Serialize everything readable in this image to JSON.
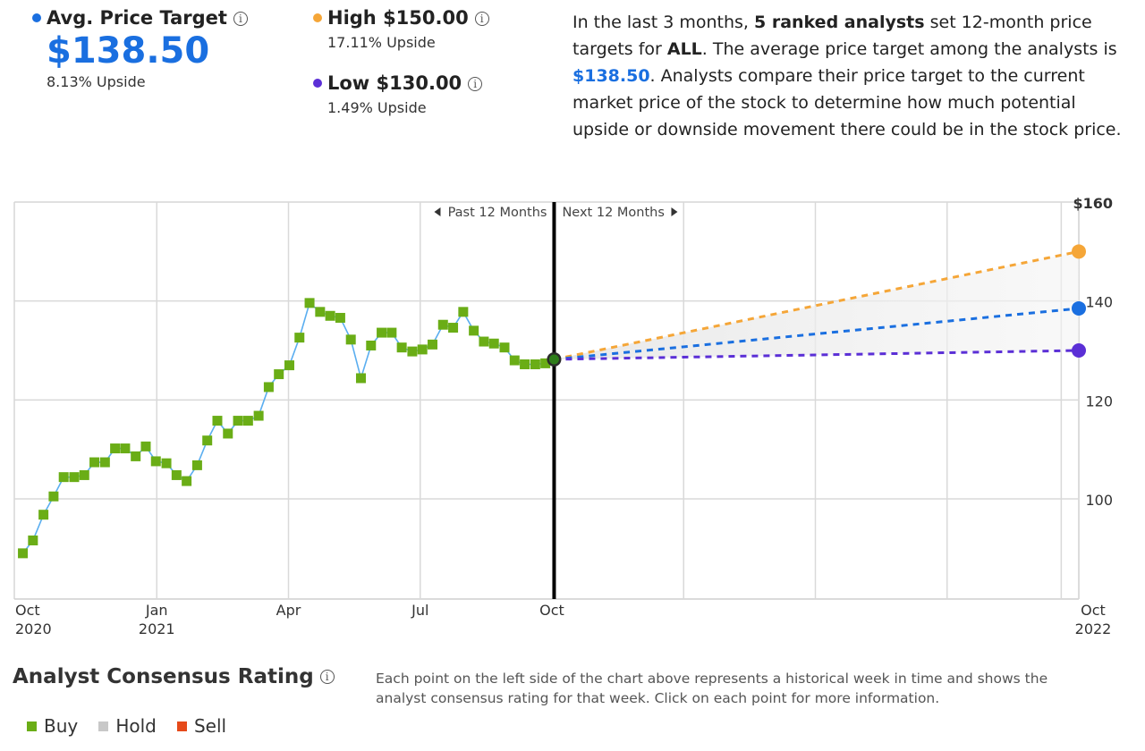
{
  "summary": {
    "avg": {
      "label": "Avg. Price Target",
      "value": "$138.50",
      "upside": "8.13% Upside",
      "color": "#1a6fe0"
    },
    "high": {
      "label": "High $150.00",
      "upside": "17.11% Upside",
      "color": "#f5a638"
    },
    "low": {
      "label": "Low $130.00",
      "upside": "1.49% Upside",
      "color": "#5b2fd6"
    },
    "info_icon": "info-icon"
  },
  "description": {
    "p1": "In the last 3 months, ",
    "b1": "5 ranked analysts",
    "p2": " set 12-month price targets for ",
    "b2": "ALL",
    "p3": ". The average price target among the analysts is ",
    "b3": "$138.50",
    "p4": ". Analysts compare their price target to the current market price of the stock to determine how much potential upside or downside movement there could be in the stock price."
  },
  "chart_data": {
    "type": "line",
    "past_label": "Past 12 Months",
    "next_label": "Next 12 Months",
    "x_ticks": [
      {
        "month": 0,
        "line1": "Oct",
        "line2": "2020"
      },
      {
        "month": 3,
        "line1": "Jan",
        "line2": "2021"
      },
      {
        "month": 6,
        "line1": "Apr",
        "line2": ""
      },
      {
        "month": 9,
        "line1": "Jul",
        "line2": ""
      },
      {
        "month": 12,
        "line1": "Oct",
        "line2": ""
      },
      {
        "month": 24,
        "line1": "Oct",
        "line2": "2022"
      }
    ],
    "y_ticks": [
      {
        "value": 160,
        "label": "$160"
      },
      {
        "value": 140,
        "label": "140"
      },
      {
        "value": 120,
        "label": "120"
      },
      {
        "value": 100,
        "label": "100"
      }
    ],
    "ylim": [
      80,
      160
    ],
    "xlim_months": [
      0,
      24
    ],
    "grid": true,
    "history_series": {
      "name": "",
      "line_color": "#5aaef0",
      "marker_color": "#6aad16",
      "x_months": [
        -0.05,
        0.18,
        0.42,
        0.65,
        0.88,
        1.12,
        1.35,
        1.58,
        1.82,
        2.05,
        2.28,
        2.52,
        2.75,
        2.98,
        3.22,
        3.45,
        3.68,
        3.92,
        4.15,
        4.38,
        4.62,
        4.85,
        5.08,
        5.32,
        5.55,
        5.78,
        6.02,
        6.25,
        6.48,
        6.72,
        6.95,
        7.18,
        7.42,
        7.65,
        7.88,
        8.12,
        8.35,
        8.58,
        8.82,
        9.05,
        9.28,
        9.52,
        9.75,
        9.98,
        10.22,
        10.45,
        10.68,
        10.92,
        11.15,
        11.38,
        11.62,
        11.85,
        12.05
      ],
      "values": [
        89.0,
        91.6,
        96.8,
        100.5,
        104.4,
        104.4,
        104.8,
        107.4,
        107.4,
        110.2,
        110.2,
        108.6,
        110.6,
        107.6,
        107.2,
        104.8,
        103.6,
        106.8,
        111.8,
        115.8,
        113.2,
        115.8,
        115.8,
        116.8,
        122.6,
        125.2,
        127.0,
        132.6,
        139.6,
        137.8,
        137.0,
        136.6,
        132.2,
        124.4,
        131.0,
        133.6,
        133.6,
        130.6,
        129.8,
        130.2,
        131.2,
        135.2,
        134.6,
        137.8,
        134.0,
        131.8,
        131.4,
        130.6,
        128.0,
        127.2,
        127.2,
        127.4,
        128.2
      ]
    },
    "current": {
      "month": 12.05,
      "value": 128.2,
      "color": "#2e7d1a"
    },
    "targets": [
      {
        "name": "High",
        "value": 150.0,
        "color": "#f5a638"
      },
      {
        "name": "Average",
        "value": 138.5,
        "color": "#1a6fe0"
      },
      {
        "name": "Low",
        "value": 130.0,
        "color": "#5b2fd6"
      }
    ]
  },
  "footer": {
    "title": "Analyst Consensus Rating",
    "description": "Each point on the left side of the chart above represents a historical week in time and shows the analyst consensus rating for that week. Click on each point for more information.",
    "legend": [
      {
        "label": "Buy",
        "color": "#6aad16"
      },
      {
        "label": "Hold",
        "color": "#c8c8c8"
      },
      {
        "label": "Sell",
        "color": "#e64a1a"
      }
    ]
  }
}
